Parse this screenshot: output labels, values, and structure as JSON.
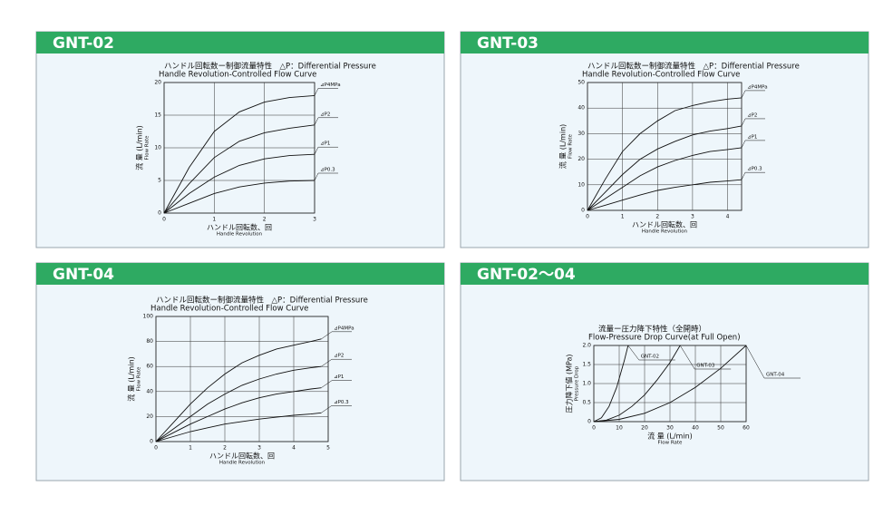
{
  "panels": [
    "GNT-02",
    "GNT-03",
    "GNT-04",
    "GNT-02～04"
  ],
  "chart_data": [
    {
      "type": "line",
      "title": "ハンドル回転数ー制御流量特性　△P：Differential Pressure",
      "subtitle": "Handle Revolution-Controlled Flow Curve",
      "xlabel": "ハンドル回転数、回",
      "xlabel_en": "Handle Revolution",
      "ylabel": "流 量 (L/min)",
      "ylabel_en": "Flow Rate",
      "x": [
        0,
        0.5,
        1,
        1.5,
        2,
        2.5,
        3
      ],
      "xlim": [
        0,
        3
      ],
      "xticks": [
        0,
        1,
        2,
        3
      ],
      "ylim": [
        0,
        20
      ],
      "yticks": [
        0,
        5,
        10,
        15,
        20
      ],
      "grid": true,
      "series": [
        {
          "name": "⊿P4MPa",
          "color": "#111111",
          "values": [
            0,
            7,
            12.5,
            15.5,
            17,
            17.7,
            18
          ]
        },
        {
          "name": "⊿P2",
          "color": "#111111",
          "values": [
            0,
            4.5,
            8.5,
            11,
            12.3,
            13,
            13.5
          ]
        },
        {
          "name": "⊿P1",
          "color": "#111111",
          "values": [
            0,
            3,
            5.5,
            7.3,
            8.3,
            8.8,
            9
          ]
        },
        {
          "name": "⊿P0.3",
          "color": "#111111",
          "values": [
            0,
            1.5,
            3,
            4,
            4.6,
            4.9,
            5
          ]
        }
      ]
    },
    {
      "type": "line",
      "title": "ハンドル回転数ー制御流量特性　△P：Differential Pressure",
      "subtitle": "Handle Revolution-Controlled Flow Curve",
      "xlabel": "ハンドル回転数、回",
      "xlabel_en": "Handle Revolution",
      "ylabel": "流 量 (L/min)",
      "ylabel_en": "Flow Rate",
      "x": [
        0,
        0.5,
        1,
        1.5,
        2,
        2.5,
        3,
        3.5,
        4,
        4.4
      ],
      "xlim": [
        0,
        4.4
      ],
      "xticks": [
        0,
        1,
        2,
        3,
        4
      ],
      "ylim": [
        0,
        50
      ],
      "yticks": [
        0,
        10,
        20,
        30,
        40,
        50
      ],
      "grid": true,
      "series": [
        {
          "name": "⊿P4MPa",
          "color": "#111111",
          "values": [
            0,
            12,
            23,
            30,
            35,
            39,
            41,
            42.5,
            43.5,
            44
          ]
        },
        {
          "name": "⊿P2",
          "color": "#111111",
          "values": [
            0,
            7,
            14,
            20,
            24,
            27,
            29.5,
            31,
            32,
            33
          ]
        },
        {
          "name": "⊿P1",
          "color": "#111111",
          "values": [
            0,
            4.5,
            9,
            13.5,
            17,
            19.5,
            21.5,
            23,
            23.8,
            24.5
          ]
        },
        {
          "name": "⊿P0.3",
          "color": "#111111",
          "values": [
            0,
            2,
            4,
            6,
            7.8,
            9,
            10,
            11,
            11.5,
            12
          ]
        }
      ]
    },
    {
      "type": "line",
      "title": "ハンドル回転数ー制御流量特性　△P：Differential Pressure",
      "subtitle": "Handle Revolution-Controlled Flow Curve",
      "xlabel": "ハンドル回転数、回",
      "xlabel_en": "Handle Revolution",
      "ylabel": "流 量 (L/min)",
      "ylabel_en": "Flow Rate",
      "x": [
        0,
        0.5,
        1,
        1.5,
        2,
        2.5,
        3,
        3.5,
        4,
        4.5,
        4.8
      ],
      "xlim": [
        0,
        5
      ],
      "xticks": [
        0,
        1,
        2,
        3,
        4,
        5
      ],
      "ylim": [
        0,
        100
      ],
      "yticks": [
        0,
        20,
        40,
        60,
        80,
        100
      ],
      "grid": true,
      "series": [
        {
          "name": "⊿P4MPa",
          "color": "#111111",
          "values": [
            0,
            15,
            30,
            43,
            54,
            63,
            69,
            74,
            77,
            80,
            82
          ]
        },
        {
          "name": "⊿P2",
          "color": "#111111",
          "values": [
            0,
            10,
            20,
            30,
            38,
            45,
            50,
            54,
            57,
            59,
            60
          ]
        },
        {
          "name": "⊿P1",
          "color": "#111111",
          "values": [
            0,
            7,
            14,
            20,
            26,
            31,
            35,
            38,
            40,
            42,
            43
          ]
        },
        {
          "name": "⊿P0.3",
          "color": "#111111",
          "values": [
            0,
            4,
            8,
            11,
            14,
            16,
            18,
            19.5,
            21,
            22,
            23
          ]
        }
      ]
    },
    {
      "type": "line",
      "title": "流量ー圧力降下特性（全開時）",
      "subtitle": "Flow-Pressure Drop Curve(at Full Open)",
      "xlabel": "流 量 (L/min)",
      "xlabel_en": "Flow Rate",
      "ylabel": "圧力降下値 (MPa)",
      "ylabel_en": "Pressure Drop",
      "xlim": [
        0,
        60
      ],
      "xticks": [
        0,
        10,
        20,
        30,
        40,
        50,
        60
      ],
      "ylim": [
        0,
        2
      ],
      "yticks": [
        0,
        0.5,
        {
          "value": 1,
          "label": "1.0"
        },
        1.5,
        {
          "value": 2,
          "label": "2.0"
        }
      ],
      "grid": true,
      "series": [
        {
          "name": "GNT-02",
          "color": "#111111",
          "x": [
            0,
            3,
            6,
            9,
            12,
            13.5
          ],
          "values": [
            0,
            0.1,
            0.4,
            0.9,
            1.6,
            2
          ]
        },
        {
          "name": "GNT-03",
          "color": "#111111",
          "x": [
            0,
            5,
            10,
            15,
            20,
            25,
            30,
            34
          ],
          "values": [
            0,
            0.04,
            0.17,
            0.4,
            0.7,
            1.1,
            1.55,
            2
          ]
        },
        {
          "name": "GNT-04",
          "color": "#111111",
          "x": [
            0,
            10,
            20,
            30,
            40,
            50,
            60
          ],
          "values": [
            0,
            0.06,
            0.22,
            0.5,
            0.9,
            1.4,
            2
          ]
        }
      ]
    }
  ]
}
